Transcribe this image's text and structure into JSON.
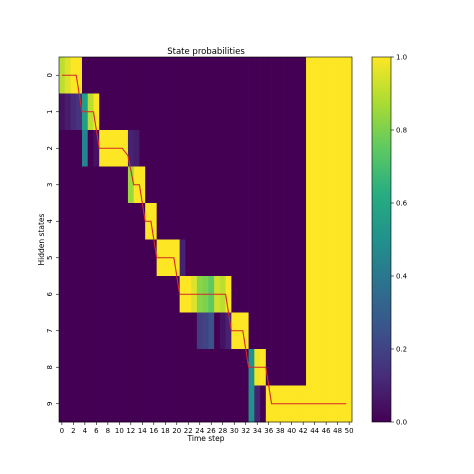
{
  "chart_data": {
    "type": "heatmap",
    "title": "State probabilities",
    "xlabel": "Time step",
    "ylabel": "Hidden states",
    "n_cols": 51,
    "n_rows": 10,
    "x_ticks": [
      0,
      2,
      4,
      6,
      8,
      10,
      12,
      14,
      16,
      18,
      20,
      22,
      24,
      26,
      28,
      30,
      32,
      34,
      36,
      38,
      40,
      42,
      44,
      46,
      48,
      50
    ],
    "y_ticks": [
      0,
      1,
      2,
      3,
      4,
      5,
      6,
      7,
      8,
      9
    ],
    "colorbar": {
      "min": 0.0,
      "max": 1.0,
      "ticks": [
        "0.0",
        "0.2",
        "0.4",
        "0.6",
        "0.8",
        "1.0"
      ],
      "colormap": "viridis"
    },
    "high_blocks": [
      {
        "state": 0,
        "t_start": 0,
        "t_end": 3,
        "value": 1.0
      },
      {
        "state": 1,
        "t_start": 4,
        "t_end": 6,
        "value": 1.0
      },
      {
        "state": 2,
        "t_start": 7,
        "t_end": 11,
        "value": 1.0
      },
      {
        "state": 3,
        "t_start": 12,
        "t_end": 14,
        "value": 1.0
      },
      {
        "state": 4,
        "t_start": 15,
        "t_end": 16,
        "value": 1.0
      },
      {
        "state": 5,
        "t_start": 17,
        "t_end": 20,
        "value": 1.0
      },
      {
        "state": 6,
        "t_start": 21,
        "t_end": 29,
        "value": 1.0
      },
      {
        "state": 7,
        "t_start": 30,
        "t_end": 32,
        "value": 1.0
      },
      {
        "state": 8,
        "t_start": 33,
        "t_end": 35,
        "value": 1.0
      },
      {
        "state": 9,
        "t_start": 36,
        "t_end": 50,
        "value": 1.0
      },
      {
        "state_range": [
          0,
          8
        ],
        "t_start": 43,
        "t_end": 50,
        "value": 1.0
      }
    ],
    "partial_cells": [
      {
        "state": 0,
        "t": 0,
        "value": 0.9
      },
      {
        "state": 0,
        "t": 1,
        "value": 0.95
      },
      {
        "state": 1,
        "t": 0,
        "value": 0.05
      },
      {
        "state": 1,
        "t": 1,
        "value": 0.08
      },
      {
        "state": 1,
        "t": 2,
        "value": 0.12
      },
      {
        "state": 1,
        "t": 3,
        "value": 0.15
      },
      {
        "state": 1,
        "t": 4,
        "value": 0.55
      },
      {
        "state": 2,
        "t": 4,
        "value": 0.45
      },
      {
        "state": 1,
        "t": 5,
        "value": 0.9
      },
      {
        "state": 2,
        "t": 6,
        "value": 0.05
      },
      {
        "state": 2,
        "t": 12,
        "value": 0.1
      },
      {
        "state": 3,
        "t": 12,
        "value": 0.85
      },
      {
        "state": 2,
        "t": 13,
        "value": 0.08
      },
      {
        "state": 5,
        "t": 21,
        "value": 0.1
      },
      {
        "state": 6,
        "t": 23,
        "value": 0.95
      },
      {
        "state": 6,
        "t": 24,
        "value": 0.82
      },
      {
        "state": 7,
        "t": 24,
        "value": 0.18
      },
      {
        "state": 6,
        "t": 25,
        "value": 0.8
      },
      {
        "state": 7,
        "t": 25,
        "value": 0.2
      },
      {
        "state": 6,
        "t": 26,
        "value": 0.75
      },
      {
        "state": 7,
        "t": 26,
        "value": 0.25
      },
      {
        "state": 6,
        "t": 27,
        "value": 0.93
      },
      {
        "state": 6,
        "t": 28,
        "value": 0.9
      },
      {
        "state": 7,
        "t": 28,
        "value": 0.05
      },
      {
        "state": 7,
        "t": 29,
        "value": 0.1
      },
      {
        "state": 8,
        "t": 33,
        "value": 0.5
      },
      {
        "state": 9,
        "t": 33,
        "value": 0.5
      },
      {
        "state": 8,
        "t": 34,
        "value": 0.98
      },
      {
        "state": 9,
        "t": 34,
        "value": 0.1
      }
    ],
    "path_overlay": {
      "color": "#d62728",
      "points": [
        [
          0,
          0
        ],
        [
          2.5,
          0
        ],
        [
          3.5,
          1
        ],
        [
          5.5,
          1
        ],
        [
          6.5,
          2
        ],
        [
          10.5,
          2
        ],
        [
          11.5,
          2.2
        ],
        [
          12.5,
          3
        ],
        [
          13.5,
          3
        ],
        [
          14.5,
          4
        ],
        [
          15.5,
          4
        ],
        [
          16.5,
          5
        ],
        [
          19.5,
          5
        ],
        [
          20.5,
          6
        ],
        [
          28.5,
          6
        ],
        [
          29.5,
          7
        ],
        [
          31.5,
          7
        ],
        [
          32.5,
          8
        ],
        [
          35.5,
          8
        ],
        [
          36.5,
          9
        ],
        [
          49.5,
          9
        ]
      ]
    }
  }
}
